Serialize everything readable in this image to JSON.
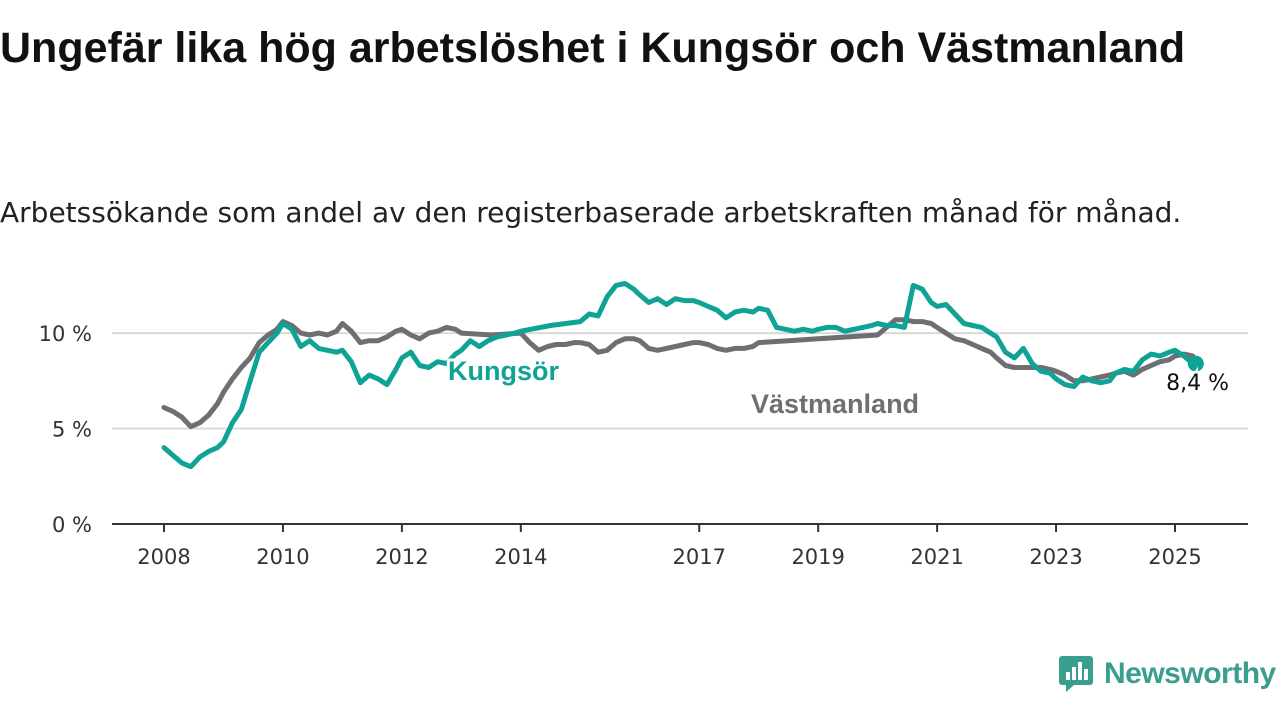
{
  "title": "Ungefär lika hög arbetslöshet i Kungsör och Västmanland",
  "subtitle": "Arbetssökande som andel av den registerbaserade arbetskraften månad för månad.",
  "brand": {
    "name": "Newsworthy",
    "icon": "newsworthy-logo-icon"
  },
  "colors": {
    "kungsor": "#0fa396",
    "vastmanland": "#6e6e73",
    "grid": "#d9d9d9",
    "axis": "#333333",
    "brand": "#3a9e8f"
  },
  "chart_data": {
    "type": "line",
    "x_unit": "year",
    "xlim": [
      2008,
      2026.2
    ],
    "ylim": [
      0,
      11
    ],
    "y_ticks": [
      {
        "value": 0,
        "label": "0 %"
      },
      {
        "value": 5,
        "label": "5 %"
      },
      {
        "value": 10,
        "label": "10 %"
      }
    ],
    "x_ticks": [
      {
        "value": 2008,
        "label": "2008"
      },
      {
        "value": 2010,
        "label": "2010"
      },
      {
        "value": 2012,
        "label": "2012"
      },
      {
        "value": 2014,
        "label": "2014"
      },
      {
        "value": 2017,
        "label": "2017"
      },
      {
        "value": 2019,
        "label": "2019"
      },
      {
        "value": 2021,
        "label": "2021"
      },
      {
        "value": 2023,
        "label": "2023"
      },
      {
        "value": 2025,
        "label": "2025"
      }
    ],
    "grid": true,
    "series": [
      {
        "name": "Kungsör",
        "color": "#0fa396",
        "x": [
          2008.0,
          2008.15,
          2008.3,
          2008.45,
          2008.6,
          2008.75,
          2008.9,
          2009.0,
          2009.15,
          2009.3,
          2009.45,
          2009.6,
          2009.75,
          2009.9,
          2010.0,
          2010.15,
          2010.3,
          2010.45,
          2010.6,
          2010.75,
          2010.9,
          2011.0,
          2011.15,
          2011.3,
          2011.45,
          2011.6,
          2011.75,
          2011.9,
          2012.0,
          2012.15,
          2012.3,
          2012.45,
          2012.6,
          2012.75,
          2012.9,
          2013.0,
          2013.15,
          2013.3,
          2013.45,
          2013.6,
          2013.75,
          2013.9,
          2014.0,
          2014.5,
          2015.0,
          2015.15,
          2015.3,
          2015.45,
          2015.6,
          2015.75,
          2015.9,
          2016.0,
          2016.15,
          2016.3,
          2016.45,
          2016.6,
          2016.75,
          2016.9,
          2017.0,
          2017.15,
          2017.3,
          2017.45,
          2017.6,
          2017.75,
          2017.9,
          2018.0,
          2018.15,
          2018.3,
          2018.45,
          2018.6,
          2018.75,
          2018.9,
          2019.0,
          2019.15,
          2019.3,
          2019.45,
          2019.6,
          2019.75,
          2019.9,
          2020.0,
          2020.15,
          2020.3,
          2020.45,
          2020.6,
          2020.75,
          2020.9,
          2021.0,
          2021.15,
          2021.3,
          2021.45,
          2021.6,
          2021.75,
          2021.9,
          2022.0,
          2022.15,
          2022.3,
          2022.45,
          2022.6,
          2022.75,
          2022.9,
          2023.0,
          2023.15,
          2023.3,
          2023.45,
          2023.6,
          2023.75,
          2023.9,
          2024.0,
          2024.15,
          2024.3,
          2024.45,
          2024.6,
          2024.75,
          2024.9,
          2025.0,
          2025.15,
          2025.3
        ],
        "values": [
          4.0,
          3.6,
          3.2,
          3.0,
          3.5,
          3.8,
          4.0,
          4.3,
          5.3,
          6.0,
          7.5,
          9.0,
          9.5,
          10.0,
          10.5,
          10.2,
          9.3,
          9.6,
          9.2,
          9.1,
          9.0,
          9.1,
          8.5,
          7.4,
          7.8,
          7.6,
          7.3,
          8.1,
          8.7,
          9.0,
          8.3,
          8.2,
          8.5,
          8.4,
          8.9,
          9.1,
          9.6,
          9.3,
          9.6,
          9.8,
          9.9,
          10.0,
          10.1,
          10.4,
          10.6,
          11.0,
          10.9,
          11.9,
          12.5,
          12.6,
          12.3,
          12.0,
          11.6,
          11.8,
          11.5,
          11.8,
          11.7,
          11.7,
          11.6,
          11.4,
          11.2,
          10.8,
          11.1,
          11.2,
          11.1,
          11.3,
          11.2,
          10.3,
          10.2,
          10.1,
          10.2,
          10.1,
          10.2,
          10.3,
          10.3,
          10.1,
          10.2,
          10.3,
          10.4,
          10.5,
          10.4,
          10.4,
          10.3,
          12.5,
          12.3,
          11.6,
          11.4,
          11.5,
          11.0,
          10.5,
          10.4,
          10.3,
          10.0,
          9.8,
          9.0,
          8.7,
          9.2,
          8.4,
          8.0,
          7.9,
          7.6,
          7.3,
          7.2,
          7.7,
          7.5,
          7.4,
          7.5,
          7.9,
          8.1,
          8.0,
          8.6,
          8.9,
          8.8,
          9.0,
          9.1,
          8.8,
          8.4
        ]
      },
      {
        "name": "Västmanland",
        "color": "#6e6e73",
        "x": [
          2008.0,
          2008.15,
          2008.3,
          2008.45,
          2008.6,
          2008.75,
          2008.9,
          2009.0,
          2009.15,
          2009.3,
          2009.45,
          2009.6,
          2009.75,
          2009.9,
          2010.0,
          2010.15,
          2010.3,
          2010.45,
          2010.6,
          2010.75,
          2010.9,
          2011.0,
          2011.15,
          2011.3,
          2011.45,
          2011.6,
          2011.75,
          2011.9,
          2012.0,
          2012.15,
          2012.3,
          2012.45,
          2012.6,
          2012.75,
          2012.9,
          2013.0,
          2013.5,
          2014.0,
          2014.15,
          2014.3,
          2014.45,
          2014.6,
          2014.75,
          2014.9,
          2015.0,
          2015.15,
          2015.3,
          2015.45,
          2015.6,
          2015.75,
          2015.9,
          2016.0,
          2016.15,
          2016.3,
          2016.45,
          2016.6,
          2016.75,
          2016.9,
          2017.0,
          2017.15,
          2017.3,
          2017.45,
          2017.6,
          2017.75,
          2017.9,
          2018.0,
          2018.5,
          2019.0,
          2019.5,
          2020.0,
          2020.15,
          2020.3,
          2020.45,
          2020.6,
          2020.75,
          2020.9,
          2021.0,
          2021.15,
          2021.3,
          2021.45,
          2021.6,
          2021.75,
          2021.9,
          2022.0,
          2022.15,
          2022.3,
          2022.45,
          2022.6,
          2022.75,
          2022.9,
          2023.0,
          2023.15,
          2023.3,
          2023.45,
          2023.6,
          2023.75,
          2023.9,
          2024.0,
          2024.15,
          2024.3,
          2024.45,
          2024.6,
          2024.75,
          2024.9,
          2025.0,
          2025.15,
          2025.3
        ],
        "values": [
          6.1,
          5.9,
          5.6,
          5.1,
          5.3,
          5.7,
          6.3,
          6.9,
          7.6,
          8.2,
          8.7,
          9.5,
          9.9,
          10.2,
          10.6,
          10.4,
          10.0,
          9.9,
          10.0,
          9.9,
          10.1,
          10.5,
          10.1,
          9.5,
          9.6,
          9.6,
          9.8,
          10.1,
          10.2,
          9.9,
          9.7,
          10.0,
          10.1,
          10.3,
          10.2,
          10.0,
          9.9,
          10.0,
          9.5,
          9.1,
          9.3,
          9.4,
          9.4,
          9.5,
          9.5,
          9.4,
          9.0,
          9.1,
          9.5,
          9.7,
          9.7,
          9.6,
          9.2,
          9.1,
          9.2,
          9.3,
          9.4,
          9.5,
          9.5,
          9.4,
          9.2,
          9.1,
          9.2,
          9.2,
          9.3,
          9.5,
          9.6,
          9.7,
          9.8,
          9.9,
          10.3,
          10.7,
          10.7,
          10.6,
          10.6,
          10.5,
          10.3,
          10.0,
          9.7,
          9.6,
          9.4,
          9.2,
          9.0,
          8.7,
          8.3,
          8.2,
          8.2,
          8.2,
          8.2,
          8.1,
          8.0,
          7.8,
          7.5,
          7.5,
          7.6,
          7.7,
          7.8,
          7.9,
          8.0,
          7.8,
          8.1,
          8.3,
          8.5,
          8.6,
          8.8,
          8.9,
          8.8
        ]
      }
    ],
    "end_label": {
      "series": "Kungsör",
      "x": 2025.35,
      "value": 8.4,
      "text": "8,4 %"
    }
  }
}
